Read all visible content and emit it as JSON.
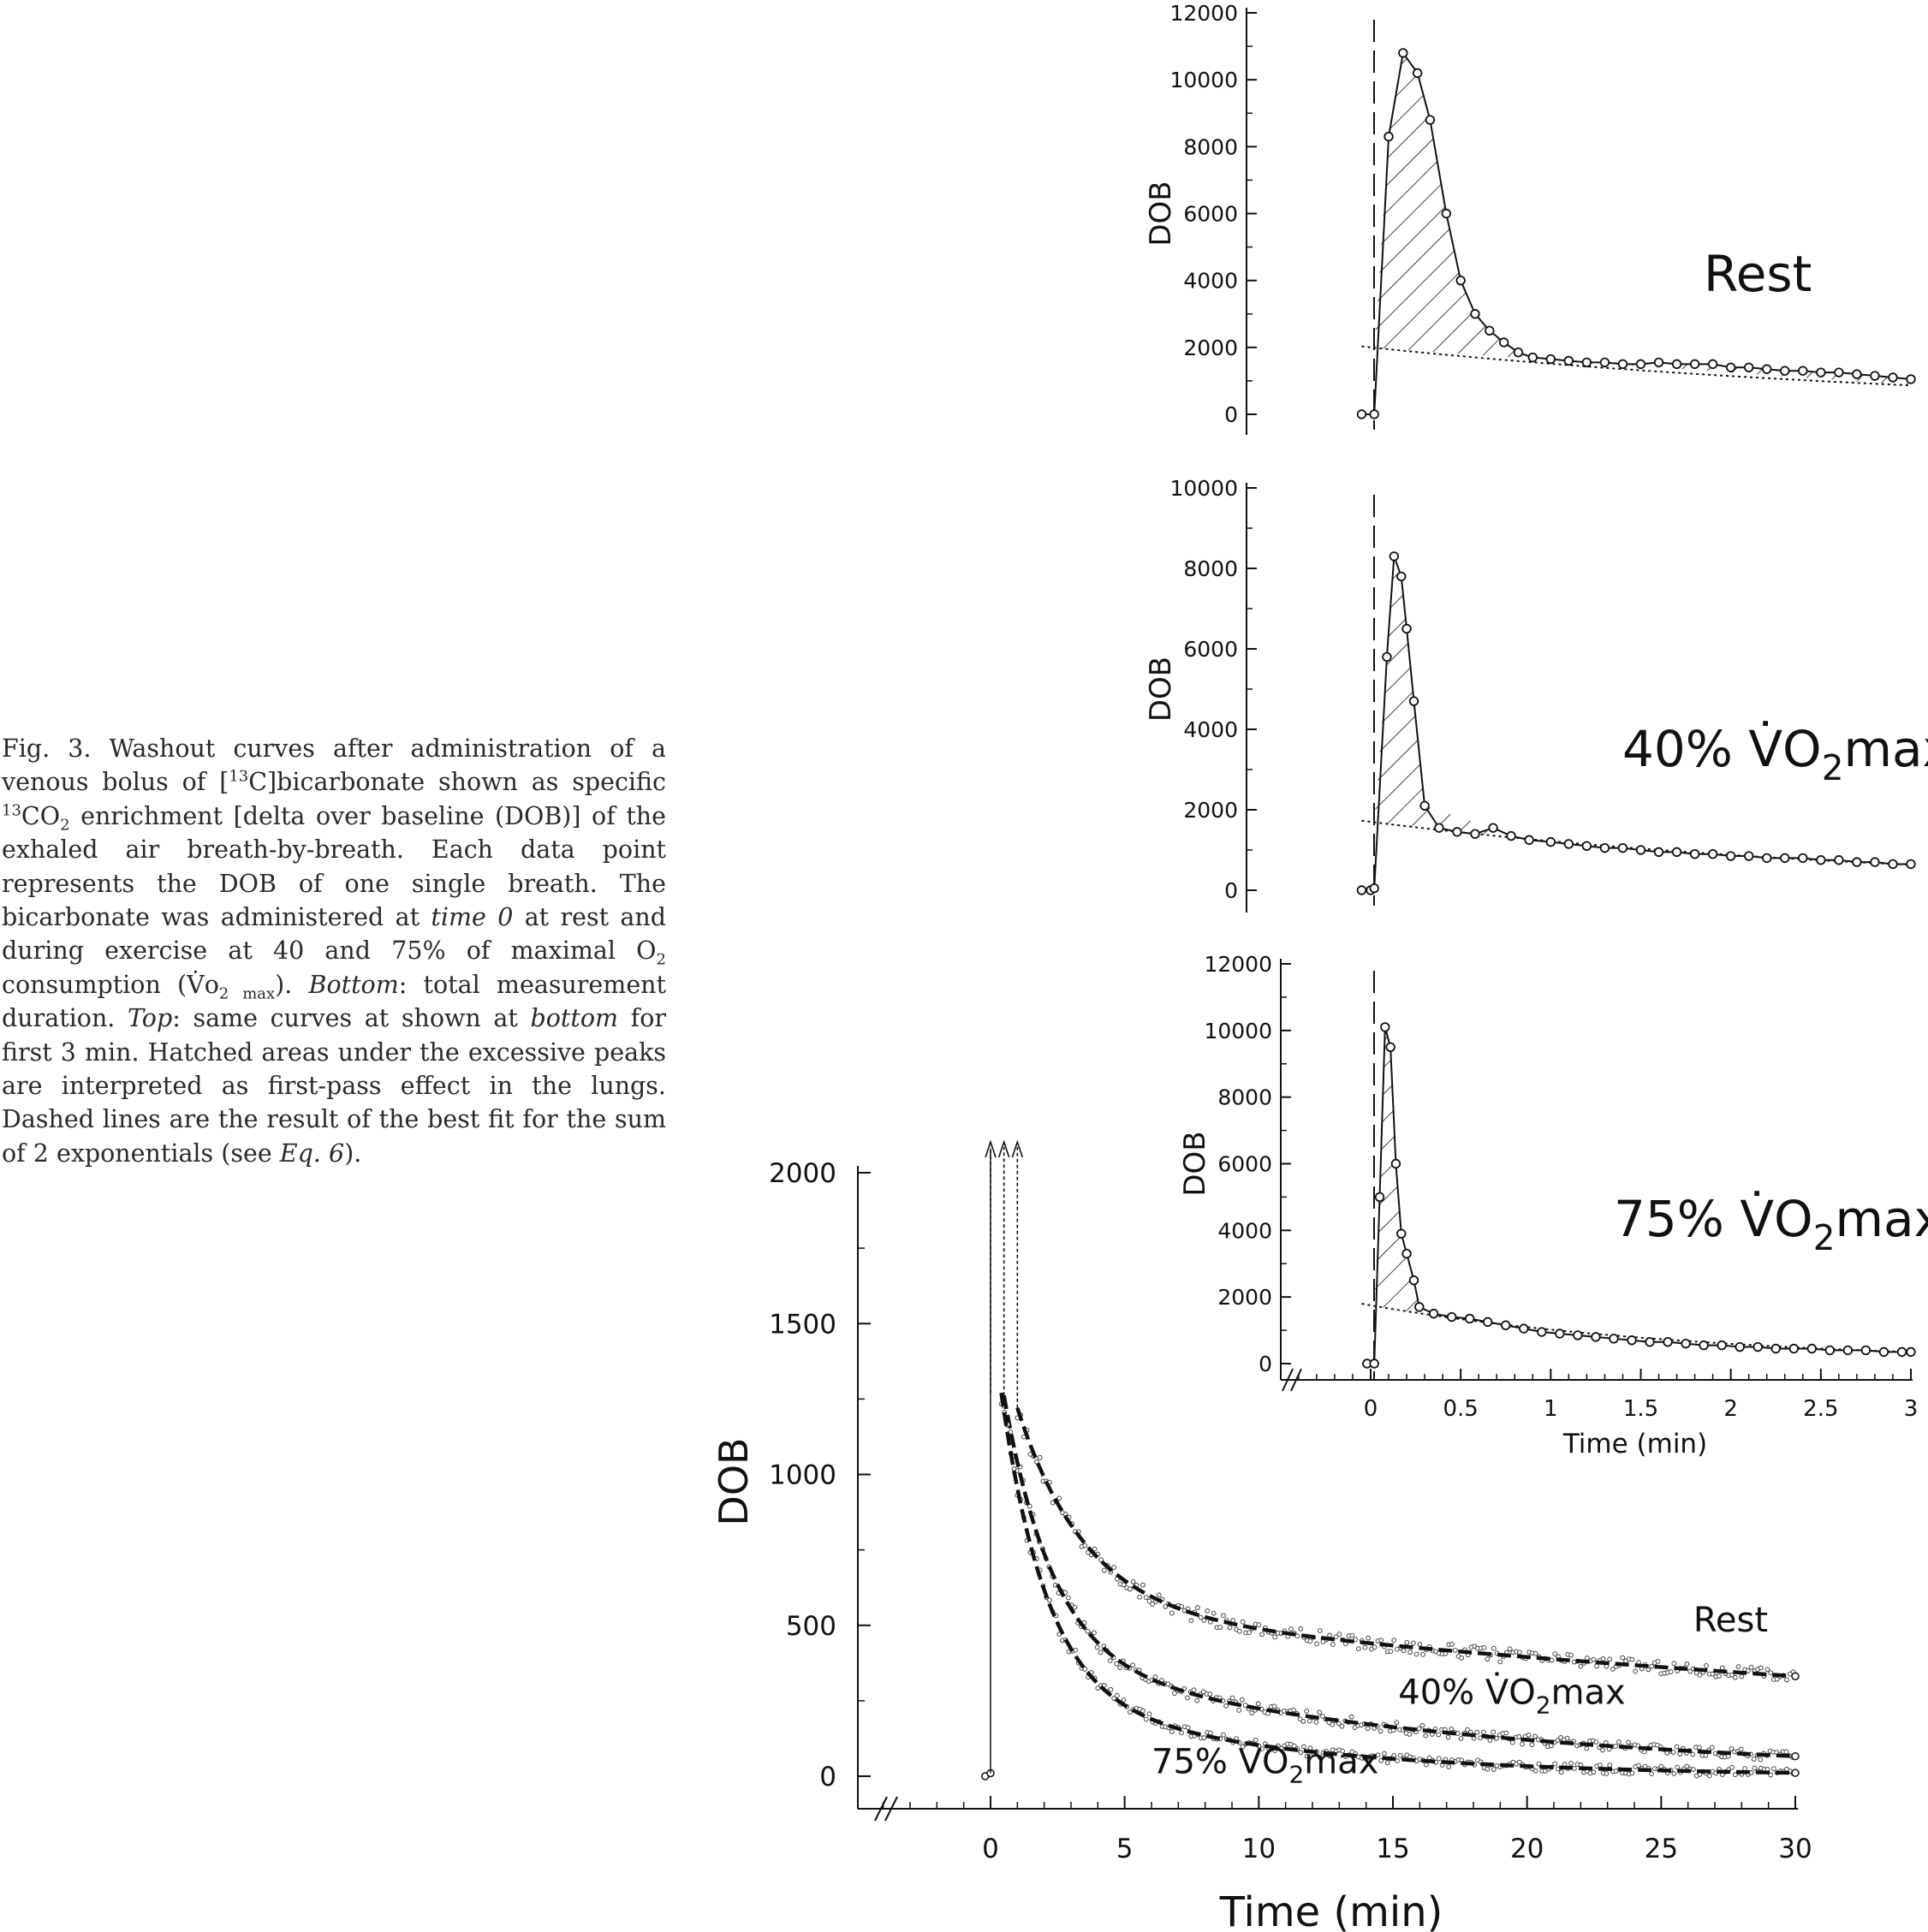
{
  "caption": {
    "fig_label": "Fig. 3.",
    "text_1": " Washout curves after administration of a venous bolus of [",
    "sup_13a": "13",
    "text_2": "C]bicarbonate shown as specific ",
    "sup_13b": "13",
    "text_3": "CO",
    "sub_2a": "2",
    "text_4": " enrichment [delta over baseline (DOB)] of the exhaled air breath-by-breath. Each data point represents the DOB of one single breath. The bicarbonate was administered at ",
    "italic_time0": "time 0",
    "text_5": " at rest and during exercise at 40 and 75% of maximal O",
    "sub_2b": "2",
    "text_6": " consumption (V̇o",
    "sub_2max": "2 max",
    "text_7": "). ",
    "italic_bottom1": "Bottom",
    "text_8": ": total measurement duration. ",
    "italic_top": "Top",
    "text_9": ": same curves at shown at ",
    "italic_bottom2": "bottom",
    "text_10": " for first 3 min. Hatched areas under the excessive peaks are interpreted as first-pass effect in the lungs. Dashed lines are the result of the best fit for the sum of 2 exponentials (see ",
    "italic_eq": "Eq. 6",
    "text_11": ")."
  },
  "chart_data": [
    {
      "type": "scatter",
      "panel": "Rest",
      "label": "Rest",
      "ylabel": "DOB",
      "xlabel": "",
      "ylim": [
        0,
        12000
      ],
      "yticks": [
        "0",
        "2000",
        "4000",
        "6000",
        "8000",
        "10000",
        "12000"
      ],
      "xlim": [
        -0.45,
        3
      ],
      "points": [
        [
          -0.05,
          0
        ],
        [
          0.02,
          0
        ],
        [
          0.1,
          8300
        ],
        [
          0.18,
          10800
        ],
        [
          0.26,
          10200
        ],
        [
          0.33,
          8800
        ],
        [
          0.42,
          6000
        ],
        [
          0.5,
          4000
        ],
        [
          0.58,
          3000
        ],
        [
          0.66,
          2500
        ],
        [
          0.74,
          2150
        ],
        [
          0.82,
          1850
        ],
        [
          0.9,
          1700
        ],
        [
          1.0,
          1650
        ],
        [
          1.1,
          1600
        ],
        [
          1.2,
          1550
        ],
        [
          1.3,
          1550
        ],
        [
          1.4,
          1500
        ],
        [
          1.5,
          1500
        ],
        [
          1.6,
          1550
        ],
        [
          1.7,
          1500
        ],
        [
          1.8,
          1500
        ],
        [
          1.9,
          1500
        ],
        [
          2.0,
          1400
        ],
        [
          2.1,
          1400
        ],
        [
          2.2,
          1350
        ],
        [
          2.3,
          1300
        ],
        [
          2.4,
          1300
        ],
        [
          2.5,
          1250
        ],
        [
          2.6,
          1250
        ],
        [
          2.7,
          1200
        ],
        [
          2.8,
          1150
        ],
        [
          2.9,
          1100
        ],
        [
          3.0,
          1050
        ]
      ],
      "fit": {
        "a": 2000,
        "b": -0.28
      },
      "baseline_fit": [
        [
          -0.05,
          2100
        ],
        [
          0.85,
          1750
        ]
      ]
    },
    {
      "type": "scatter",
      "panel": "40% VO2max",
      "label": "40% V̇O",
      "label_sub": "2",
      "label_suffix": "max",
      "ylabel": "DOB",
      "xlabel": "",
      "ylim": [
        0,
        10000
      ],
      "yticks": [
        "0",
        "2000",
        "4000",
        "6000",
        "8000",
        "10000"
      ],
      "xlim": [
        -0.45,
        3
      ],
      "points": [
        [
          -0.05,
          0
        ],
        [
          0.0,
          0
        ],
        [
          0.02,
          50
        ],
        [
          0.09,
          5800
        ],
        [
          0.13,
          8300
        ],
        [
          0.17,
          7800
        ],
        [
          0.2,
          6500
        ],
        [
          0.24,
          4700
        ],
        [
          0.3,
          2100
        ],
        [
          0.38,
          1550
        ],
        [
          0.48,
          1450
        ],
        [
          0.58,
          1400
        ],
        [
          0.68,
          1550
        ],
        [
          0.78,
          1350
        ],
        [
          0.88,
          1250
        ],
        [
          1.0,
          1200
        ],
        [
          1.1,
          1150
        ],
        [
          1.2,
          1100
        ],
        [
          1.3,
          1050
        ],
        [
          1.4,
          1050
        ],
        [
          1.5,
          1000
        ],
        [
          1.6,
          950
        ],
        [
          1.7,
          950
        ],
        [
          1.8,
          900
        ],
        [
          1.9,
          900
        ],
        [
          2.0,
          850
        ],
        [
          2.1,
          850
        ],
        [
          2.2,
          800
        ],
        [
          2.3,
          800
        ],
        [
          2.4,
          800
        ],
        [
          2.5,
          750
        ],
        [
          2.6,
          750
        ],
        [
          2.7,
          700
        ],
        [
          2.8,
          700
        ],
        [
          2.9,
          650
        ],
        [
          3.0,
          650
        ]
      ],
      "fit": {
        "a": 1700,
        "b": -0.33
      },
      "baseline_fit": [
        [
          -0.05,
          1800
        ],
        [
          0.7,
          1350
        ]
      ]
    },
    {
      "type": "scatter",
      "panel": "75% VO2max",
      "label": "75% V̇O",
      "label_sub": "2",
      "label_suffix": "max",
      "ylabel": "DOB",
      "xlabel": "Time (min)",
      "ylim": [
        0,
        12000
      ],
      "yticks": [
        "0",
        "2000",
        "4000",
        "6000",
        "8000",
        "10000",
        "12000"
      ],
      "xlim": [
        -0.45,
        3
      ],
      "xticks": [
        "0",
        "0.5",
        "1",
        "1.5",
        "2",
        "2.5",
        "3"
      ],
      "points": [
        [
          -0.02,
          0
        ],
        [
          0.02,
          0
        ],
        [
          0.05,
          5000
        ],
        [
          0.08,
          10100
        ],
        [
          0.11,
          9500
        ],
        [
          0.14,
          6000
        ],
        [
          0.17,
          3900
        ],
        [
          0.2,
          3300
        ],
        [
          0.24,
          2500
        ],
        [
          0.27,
          1700
        ],
        [
          0.35,
          1500
        ],
        [
          0.45,
          1400
        ],
        [
          0.55,
          1350
        ],
        [
          0.65,
          1250
        ],
        [
          0.75,
          1150
        ],
        [
          0.85,
          1050
        ],
        [
          0.95,
          950
        ],
        [
          1.05,
          900
        ],
        [
          1.15,
          850
        ],
        [
          1.25,
          800
        ],
        [
          1.35,
          750
        ],
        [
          1.45,
          700
        ],
        [
          1.55,
          650
        ],
        [
          1.65,
          650
        ],
        [
          1.75,
          600
        ],
        [
          1.85,
          550
        ],
        [
          1.95,
          550
        ],
        [
          2.05,
          500
        ],
        [
          2.15,
          500
        ],
        [
          2.25,
          450
        ],
        [
          2.35,
          450
        ],
        [
          2.45,
          450
        ],
        [
          2.55,
          400
        ],
        [
          2.65,
          400
        ],
        [
          2.75,
          400
        ],
        [
          2.85,
          350
        ],
        [
          2.95,
          350
        ],
        [
          3.0,
          350
        ]
      ],
      "fit": {
        "a": 1750,
        "b": -0.54
      },
      "baseline_fit": [
        [
          -0.05,
          1800
        ],
        [
          0.3,
          1550
        ]
      ]
    },
    {
      "type": "line",
      "panel": "total duration",
      "ylabel": "DOB",
      "xlabel": "Time (min)",
      "ylim": [
        0,
        2000
      ],
      "yticks": [
        "0",
        "500",
        "1000",
        "1500",
        "2000"
      ],
      "xlim": [
        -5,
        30
      ],
      "xticks": [
        "0",
        "5",
        "10",
        "15",
        "20",
        "25",
        "30"
      ],
      "series": [
        {
          "name": "Rest",
          "label": "Rest",
          "label_sub": "",
          "label_suffix": "",
          "fit": {
            "a1": 1000,
            "k1": 0.4,
            "a2": 560,
            "k2": 0.0175
          },
          "x_start": 1.0,
          "label_x": 26.2,
          "label_y": 480,
          "arrow_x": 1.0
        },
        {
          "name": "40% VO2max",
          "label": "40% V̇O",
          "label_sub": "2",
          "label_suffix": "max",
          "fit": {
            "a1": 1150,
            "k1": 0.55,
            "a2": 400,
            "k2": 0.06
          },
          "x_start": 0.5,
          "label_x": 15.2,
          "label_y": 240,
          "arrow_x": 0.5
        },
        {
          "name": "75% VO2max",
          "label": "75% V̇O",
          "label_sub": "2",
          "label_suffix": "max",
          "fit": {
            "a1": 1250,
            "k1": 0.6,
            "a2": 300,
            "k2": 0.11
          },
          "x_start": 0.4,
          "label_x": 6.0,
          "label_y": 10,
          "arrow_x": 0.0
        }
      ],
      "pre_points": [
        [
          -0.2,
          0
        ],
        [
          0.0,
          10
        ]
      ]
    }
  ]
}
